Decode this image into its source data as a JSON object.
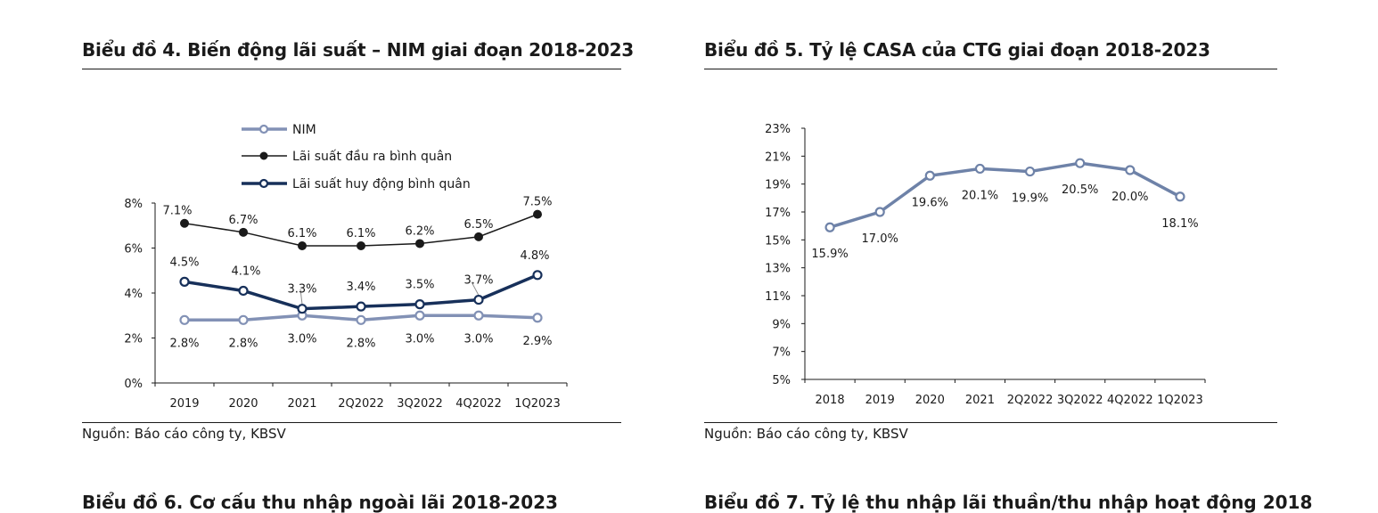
{
  "left_panel": {
    "title": "Biểu đồ 4. Biến động lãi suất – NIM giai đoạn 2018-2023",
    "source": "Nguồn: Báo cáo công ty, KBSV"
  },
  "right_panel": {
    "title": "Biểu đồ 5. Tỷ lệ CASA của CTG giai đoạn 2018-2023",
    "source": "Nguồn: Báo cáo công ty, KBSV"
  },
  "next_titles": {
    "left": "Biểu đồ 6. Cơ cấu thu nhập ngoài lãi 2018-2023",
    "right": "Biểu đồ 7. Tỷ lệ thu nhập lãi thuần/thu nhập hoạt động 2018"
  },
  "colors": {
    "nim": "#8291B5",
    "output_rate": "#1A1A1A",
    "deposit_rate": "#17305A",
    "casa": "#6E82A8",
    "axis": "#1A1A1A"
  },
  "chart_data": [
    {
      "type": "line",
      "title": "",
      "categories": [
        "2019",
        "2020",
        "2021",
        "2Q2022",
        "3Q2022",
        "4Q2022",
        "1Q2023"
      ],
      "ylim": [
        0,
        8
      ],
      "yticks": [
        0,
        2,
        4,
        6,
        8
      ],
      "ytick_labels": [
        "0%",
        "2%",
        "4%",
        "6%",
        "8%"
      ],
      "grid": false,
      "legend": "top",
      "series": [
        {
          "name": "NIM",
          "values": [
            2.8,
            2.8,
            3.0,
            2.8,
            3.0,
            3.0,
            2.9
          ],
          "labels": [
            "2.8%",
            "2.8%",
            "3.0%",
            "2.8%",
            "3.0%",
            "3.0%",
            "2.9%"
          ]
        },
        {
          "name": "Lãi suất đầu ra bình quân",
          "values": [
            7.1,
            6.7,
            6.1,
            6.1,
            6.2,
            6.5,
            7.5
          ],
          "labels": [
            "7.1%",
            "6.7%",
            "6.1%",
            "6.1%",
            "6.2%",
            "6.5%",
            "7.5%"
          ]
        },
        {
          "name": "Lãi suất huy động bình quân",
          "values": [
            4.5,
            4.1,
            3.3,
            3.4,
            3.5,
            3.7,
            4.8
          ],
          "labels": [
            "4.5%",
            "4.1%",
            "3.3%",
            "3.4%",
            "3.5%",
            "3.7%",
            "4.8%"
          ]
        }
      ]
    },
    {
      "type": "line",
      "title": "",
      "categories": [
        "2018",
        "2019",
        "2020",
        "2021",
        "2Q2022",
        "3Q2022",
        "4Q2022",
        "1Q2023"
      ],
      "ylim": [
        5,
        23
      ],
      "yticks": [
        5,
        7,
        9,
        11,
        13,
        15,
        17,
        19,
        21,
        23
      ],
      "ytick_labels": [
        "5%",
        "7%",
        "9%",
        "11%",
        "13%",
        "15%",
        "17%",
        "19%",
        "21%",
        "23%"
      ],
      "grid": false,
      "legend": "none",
      "series": [
        {
          "name": "",
          "values": [
            15.9,
            17.0,
            19.6,
            20.1,
            19.9,
            20.5,
            20.0,
            18.1
          ],
          "labels": [
            "15.9%",
            "17.0%",
            "19.6%",
            "20.1%",
            "19.9%",
            "20.5%",
            "20.0%",
            "18.1%"
          ]
        }
      ]
    }
  ]
}
